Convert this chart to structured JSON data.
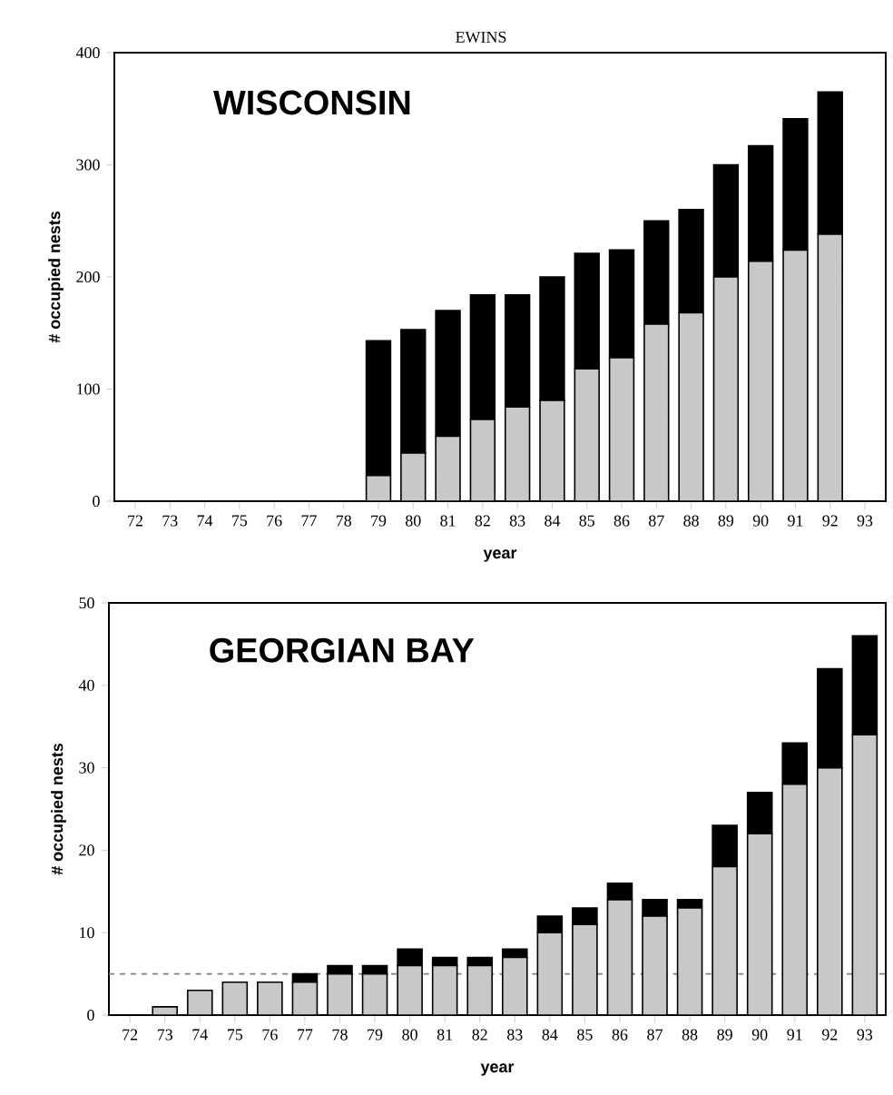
{
  "chart_data": [
    {
      "type": "bar",
      "title": "WISCONSIN",
      "annotations": [
        "EWINS"
      ],
      "xlabel": "year",
      "ylabel": "# occupied nests",
      "stacked": true,
      "categories": [
        "72",
        "73",
        "74",
        "75",
        "76",
        "77",
        "78",
        "79",
        "80",
        "81",
        "82",
        "83",
        "84",
        "85",
        "86",
        "87",
        "88",
        "89",
        "90",
        "91",
        "92",
        "93"
      ],
      "series": [
        {
          "color": "#c8c8c8",
          "values": [
            null,
            null,
            null,
            null,
            null,
            null,
            null,
            23,
            43,
            58,
            73,
            84,
            90,
            118,
            128,
            158,
            168,
            200,
            214,
            224,
            238,
            null
          ]
        },
        {
          "color": "#000000",
          "values": [
            null,
            null,
            null,
            null,
            null,
            null,
            null,
            120,
            110,
            112,
            111,
            100,
            110,
            103,
            96,
            92,
            92,
            100,
            103,
            117,
            127,
            null
          ]
        }
      ],
      "ylim": [
        0,
        400
      ],
      "yticks": [
        0,
        100,
        200,
        300,
        400
      ]
    },
    {
      "type": "bar",
      "title": "GEORGIAN BAY",
      "xlabel": "year",
      "ylabel": "# occupied nests",
      "stacked": true,
      "categories": [
        "72",
        "73",
        "74",
        "75",
        "76",
        "77",
        "78",
        "79",
        "80",
        "81",
        "82",
        "83",
        "84",
        "85",
        "86",
        "87",
        "88",
        "89",
        "90",
        "91",
        "92",
        "93"
      ],
      "series": [
        {
          "color": "#c8c8c8",
          "values": [
            0,
            1,
            3,
            4,
            4,
            4,
            5,
            5,
            6,
            6,
            6,
            7,
            10,
            11,
            14,
            12,
            13,
            18,
            22,
            28,
            30,
            34
          ]
        },
        {
          "color": "#000000",
          "values": [
            0,
            0,
            0,
            0,
            0,
            1,
            1,
            1,
            2,
            1,
            1,
            1,
            2,
            2,
            2,
            2,
            1,
            5,
            5,
            5,
            12,
            12
          ]
        }
      ],
      "ylim": [
        0,
        50
      ],
      "yticks": [
        0,
        10,
        20,
        30,
        40,
        50
      ],
      "ref_lines": [
        {
          "axis": "y",
          "value": 5,
          "color": "#808080",
          "line_style": "dashed"
        }
      ]
    }
  ]
}
